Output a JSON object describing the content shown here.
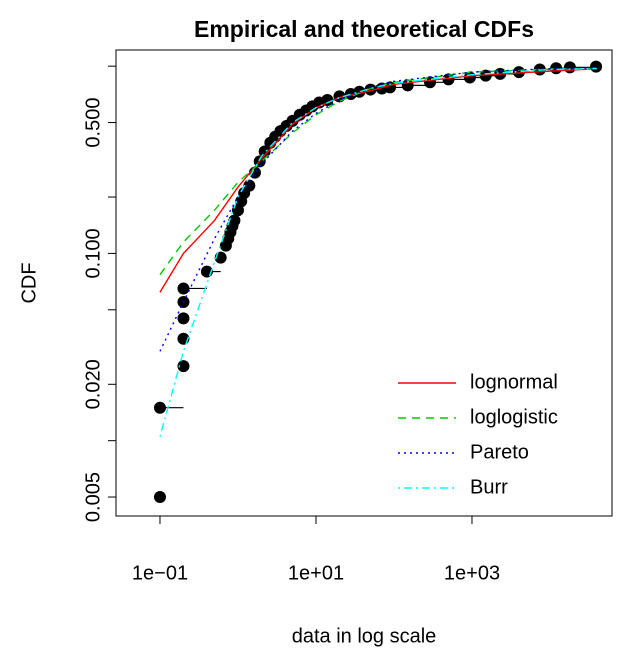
{
  "chart_data": {
    "type": "cdf",
    "title": "Empirical and theoretical CDFs",
    "xlabel": "data in log scale",
    "ylabel": "CDF",
    "xlog": true,
    "ylog": true,
    "xlim": [
      0.0273,
      62400
    ],
    "ylim": [
      0.00396,
      1.22
    ],
    "xticks": [
      {
        "value": 0.1,
        "label": "1e−01"
      },
      {
        "value": 10,
        "label": "1e+01"
      },
      {
        "value": 1000,
        "label": "1e+03"
      }
    ],
    "yticks": [
      {
        "value": 0.005,
        "label": "0.005"
      },
      {
        "value": 0.02,
        "label": "0.020"
      },
      {
        "value": 0.1,
        "label": "0.100"
      },
      {
        "value": 0.5,
        "label": "0.500"
      }
    ],
    "yticks_minor": [
      0.01,
      0.05,
      0.2,
      1
    ],
    "empirical": {
      "color": "#000000",
      "x": [
        0.1,
        0.1,
        0.2,
        0.2,
        0.2,
        0.2,
        0.2,
        0.4,
        0.6,
        0.7,
        0.75,
        0.8,
        0.85,
        0.9,
        1.0,
        1.1,
        1.2,
        1.4,
        1.65,
        1.9,
        2.2,
        2.6,
        3.0,
        3.5,
        4.2,
        5,
        6.2,
        7.5,
        9,
        11,
        14,
        20,
        28,
        36,
        50,
        70,
        89,
        150,
        290,
        500,
        940,
        1500,
        2300,
        4000,
        7400,
        12000,
        18000,
        39000
      ],
      "y": [
        0.005,
        0.015,
        0.025,
        0.035,
        0.045,
        0.055,
        0.065,
        0.08,
        0.095,
        0.11,
        0.12,
        0.13,
        0.14,
        0.15,
        0.17,
        0.19,
        0.21,
        0.23,
        0.27,
        0.31,
        0.35,
        0.39,
        0.42,
        0.45,
        0.48,
        0.51,
        0.55,
        0.58,
        0.61,
        0.64,
        0.66,
        0.69,
        0.71,
        0.73,
        0.75,
        0.76,
        0.77,
        0.79,
        0.82,
        0.85,
        0.87,
        0.89,
        0.91,
        0.93,
        0.96,
        0.975,
        0.985,
        0.995
      ]
    },
    "series": [
      {
        "name": "lognormal",
        "color": "#ff0000",
        "dash": "none",
        "x": [
          0.1,
          0.2,
          0.5,
          1,
          2,
          5,
          10,
          20,
          50,
          100,
          1000,
          10000,
          40000
        ],
        "values": [
          0.062,
          0.1,
          0.15,
          0.226,
          0.32,
          0.49,
          0.6,
          0.68,
          0.74,
          0.8,
          0.89,
          0.94,
          0.97
        ]
      },
      {
        "name": "loglogistic",
        "color": "#00cd00",
        "dash": "8 6",
        "x": [
          0.1,
          0.2,
          0.5,
          1,
          2,
          5,
          10,
          20,
          50,
          100,
          1000,
          10000,
          40000
        ],
        "values": [
          0.077,
          0.115,
          0.17,
          0.24,
          0.31,
          0.44,
          0.55,
          0.65,
          0.76,
          0.82,
          0.93,
          0.965,
          0.975
        ]
      },
      {
        "name": "Pareto",
        "color": "#0000ff",
        "dash": "2 4",
        "x": [
          0.1,
          0.2,
          0.5,
          1,
          2,
          5,
          10,
          20,
          50,
          100,
          1000,
          10000,
          40000
        ],
        "values": [
          0.03,
          0.055,
          0.12,
          0.2,
          0.3,
          0.45,
          0.56,
          0.66,
          0.77,
          0.83,
          0.93,
          0.97,
          0.98
        ]
      },
      {
        "name": "Burr",
        "color": "#00ffff",
        "dash": "2 4 8 4",
        "x": [
          0.1,
          0.2,
          0.5,
          1,
          2,
          5,
          10,
          20,
          50,
          100,
          1000,
          10000,
          40000
        ],
        "values": [
          0.0105,
          0.03,
          0.09,
          0.2,
          0.33,
          0.5,
          0.6,
          0.68,
          0.76,
          0.81,
          0.9,
          0.96,
          0.97
        ]
      }
    ],
    "legend": "bottom-right"
  }
}
